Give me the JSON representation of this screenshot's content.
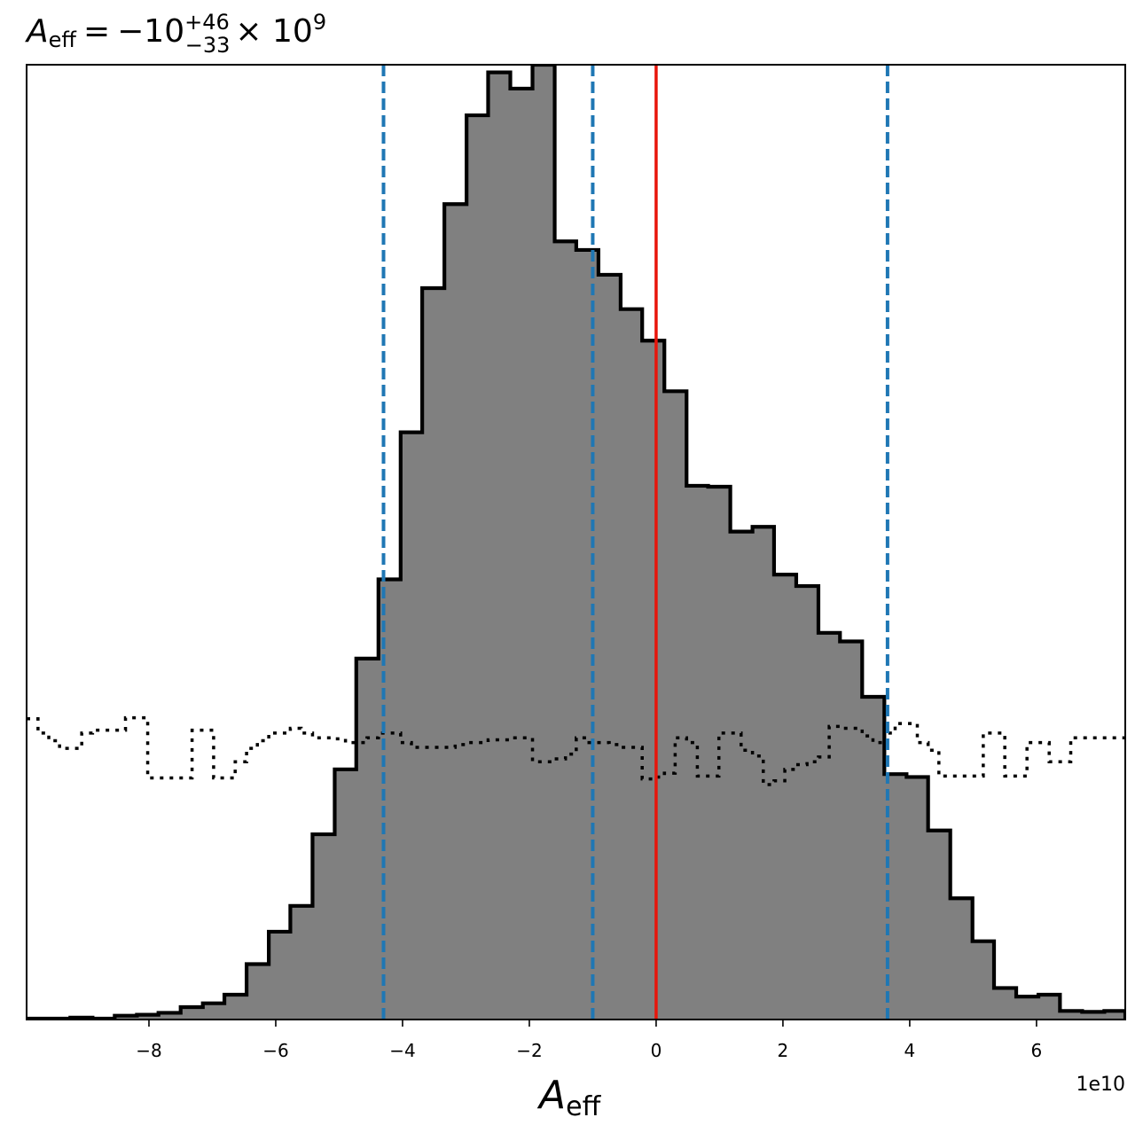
{
  "chart_data": {
    "type": "histogram",
    "title": {
      "symbol": "A",
      "symbol_sub": "eff",
      "equals": "=",
      "value": "−10",
      "upper": "+46",
      "lower": "−33",
      "times": "× 10",
      "exponent": "9"
    },
    "xlabel": {
      "symbol": "A",
      "sub": "eff"
    },
    "x_offset_label": "1e10",
    "x_scale": 10000000000.0,
    "xlim": [
      -9.93,
      7.4
    ],
    "ylim": [
      0,
      1
    ],
    "ticks": [
      {
        "value": -8,
        "label": "−8"
      },
      {
        "value": -6,
        "label": "−6"
      },
      {
        "value": -4,
        "label": "−4"
      },
      {
        "value": -2,
        "label": "−2"
      },
      {
        "value": 0,
        "label": "0"
      },
      {
        "value": 2,
        "label": "2"
      },
      {
        "value": 4,
        "label": "4"
      },
      {
        "value": 6,
        "label": "6"
      }
    ],
    "posterior": {
      "edges": [
        -9.93,
        -9.58,
        -9.24,
        -8.89,
        -8.54,
        -8.19,
        -7.85,
        -7.5,
        -7.15,
        -6.81,
        -6.46,
        -6.11,
        -5.77,
        -5.42,
        -5.07,
        -4.73,
        -4.38,
        -4.03,
        -3.69,
        -3.34,
        -2.99,
        -2.65,
        -2.3,
        -1.95,
        -1.6,
        -1.26,
        -0.91,
        -0.56,
        -0.22,
        0.13,
        0.48,
        0.82,
        1.17,
        1.52,
        1.86,
        2.21,
        2.56,
        2.9,
        3.25,
        3.6,
        3.95,
        4.29,
        4.64,
        4.99,
        5.33,
        5.68,
        6.03,
        6.37,
        6.72,
        7.07,
        7.4
      ],
      "heights": [
        0.001,
        0.001,
        0.002,
        0.001,
        0.004,
        0.005,
        0.007,
        0.013,
        0.017,
        0.026,
        0.058,
        0.092,
        0.119,
        0.194,
        0.262,
        0.378,
        0.461,
        0.615,
        0.766,
        0.854,
        0.947,
        0.992,
        0.975,
        1.0,
        0.815,
        0.806,
        0.78,
        0.744,
        0.711,
        0.658,
        0.559,
        0.558,
        0.511,
        0.516,
        0.466,
        0.454,
        0.405,
        0.396,
        0.338,
        0.257,
        0.254,
        0.198,
        0.127,
        0.082,
        0.033,
        0.024,
        0.026,
        0.009,
        0.008,
        0.009
      ]
    },
    "prior": {
      "edges": [
        -9.93,
        -9.75,
        -9.58,
        -9.41,
        -9.24,
        -9.06,
        -8.89,
        -8.72,
        -8.54,
        -8.37,
        -8.19,
        -8.02,
        -7.85,
        -7.68,
        -7.5,
        -7.32,
        -7.15,
        -6.98,
        -6.81,
        -6.64,
        -6.46,
        -6.29,
        -6.11,
        -5.94,
        -5.77,
        -5.6,
        -5.42,
        -5.25,
        -5.07,
        -4.9,
        -4.73,
        -4.56,
        -4.38,
        -4.21,
        -4.03,
        -3.86,
        -3.69,
        -3.52,
        -3.34,
        -3.17,
        -2.99,
        -2.82,
        -2.65,
        -2.48,
        -2.3,
        -2.13,
        -1.95,
        -1.78,
        -1.6,
        -1.43,
        -1.26,
        -1.09,
        -0.91,
        -0.74,
        -0.56,
        -0.39,
        -0.22,
        -0.05,
        0.13,
        0.3,
        0.48,
        0.65,
        0.82,
        0.99,
        1.17,
        1.34,
        1.52,
        1.69,
        1.86,
        2.03,
        2.21,
        2.38,
        2.56,
        2.73,
        2.9,
        3.07,
        3.25,
        3.42,
        3.6,
        3.77,
        3.95,
        4.12,
        4.29,
        4.46,
        4.64,
        4.81,
        4.99,
        5.16,
        5.33,
        5.5,
        5.68,
        5.85,
        6.03,
        6.2,
        6.37,
        6.54,
        6.72,
        6.89,
        7.07,
        7.24,
        7.4
      ],
      "heights": [
        0.315,
        0.3,
        0.292,
        0.284,
        0.284,
        0.3,
        0.303,
        0.303,
        0.303,
        0.316,
        0.316,
        0.253,
        0.253,
        0.253,
        0.253,
        0.303,
        0.303,
        0.253,
        0.253,
        0.27,
        0.284,
        0.292,
        0.3,
        0.3,
        0.305,
        0.3,
        0.295,
        0.295,
        0.294,
        0.29,
        0.29,
        0.295,
        0.3,
        0.3,
        0.29,
        0.285,
        0.285,
        0.285,
        0.285,
        0.288,
        0.29,
        0.29,
        0.293,
        0.293,
        0.295,
        0.295,
        0.27,
        0.27,
        0.273,
        0.278,
        0.295,
        0.29,
        0.29,
        0.288,
        0.285,
        0.285,
        0.252,
        0.254,
        0.258,
        0.295,
        0.29,
        0.255,
        0.255,
        0.3,
        0.3,
        0.282,
        0.276,
        0.246,
        0.25,
        0.262,
        0.267,
        0.27,
        0.275,
        0.307,
        0.305,
        0.305,
        0.297,
        0.29,
        0.3,
        0.31,
        0.31,
        0.29,
        0.282,
        0.255,
        0.255,
        0.255,
        0.255,
        0.3,
        0.3,
        0.255,
        0.255,
        0.29,
        0.29,
        0.27,
        0.27,
        0.295,
        0.295,
        0.295,
        0.295,
        0.295
      ]
    },
    "quantile_lines": [
      -4.3,
      -1.0,
      3.65
    ],
    "true_value": 0.0,
    "colors": {
      "fill": "#808080",
      "edge": "#000000",
      "quantile": "#1f77b4",
      "truth": "#e8150b"
    }
  }
}
